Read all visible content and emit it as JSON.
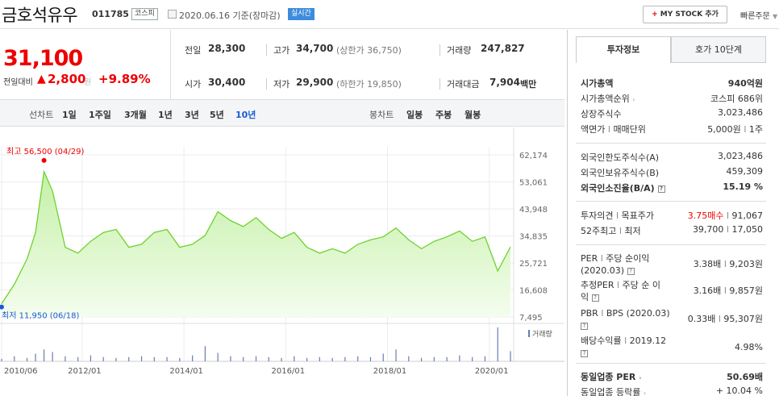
{
  "header": {
    "title": "금호석유우",
    "code": "011785",
    "market_tag": "코스피",
    "date_text": "2020.06.16 기준(장마감)",
    "realtime_tag": "실시간",
    "mystock_button": "MY STOCK 추가",
    "mystock_plus": "+",
    "quick_order": "빠른주문"
  },
  "price": {
    "current": "31,100",
    "change_label": "전일대비",
    "change_arrow": "▲",
    "change_value": "2,800",
    "change_unit": "원",
    "change_pct": "+9.89%"
  },
  "stats": {
    "prev_close_label": "전일",
    "prev_close": "28,300",
    "high_label": "고가",
    "high": "34,700",
    "upper_limit": "(상한가 36,750)",
    "volume_label": "거래량",
    "volume": "247,827",
    "open_label": "시가",
    "open": "30,400",
    "low_label": "저가",
    "low": "29,900",
    "lower_limit": "(하한가 19,850)",
    "amount_label": "거래대금",
    "amount": "7,904",
    "amount_unit": "백만"
  },
  "chart_tabs": {
    "line_label": "선차트",
    "line_periods": [
      "1일",
      "1주일",
      "3개월",
      "1년",
      "3년",
      "5년",
      "10년"
    ],
    "selected_period": "10년",
    "candle_label": "봉차트",
    "candle_periods": [
      "일봉",
      "주봉",
      "월봉"
    ]
  },
  "chart_data": {
    "type": "area",
    "ylabel": "",
    "yticks": [
      "62,174",
      "53,061",
      "43,948",
      "34,835",
      "25,721",
      "16,608",
      "7,495"
    ],
    "ylim": [
      7495,
      62174
    ],
    "xticks": [
      "2010/06",
      "2012/01",
      "2014/01",
      "2016/01",
      "2018/01",
      "2020/01"
    ],
    "x": [
      "2010/06",
      "2010/09",
      "2010/12",
      "2011/02",
      "2011/04",
      "2011/06",
      "2011/09",
      "2011/12",
      "2012/03",
      "2012/06",
      "2012/09",
      "2012/12",
      "2013/03",
      "2013/06",
      "2013/09",
      "2013/12",
      "2014/03",
      "2014/06",
      "2014/09",
      "2014/12",
      "2015/03",
      "2015/06",
      "2015/09",
      "2015/12",
      "2016/03",
      "2016/06",
      "2016/09",
      "2016/12",
      "2017/03",
      "2017/06",
      "2017/09",
      "2017/12",
      "2018/03",
      "2018/06",
      "2018/09",
      "2018/12",
      "2019/03",
      "2019/06",
      "2019/09",
      "2019/12",
      "2020/03",
      "2020/06"
    ],
    "y": [
      11950,
      18500,
      27000,
      36000,
      56500,
      50000,
      31000,
      29000,
      33000,
      36000,
      37000,
      31000,
      32000,
      36000,
      37000,
      31000,
      32000,
      35000,
      43000,
      40000,
      38000,
      41000,
      37000,
      34000,
      36000,
      31000,
      29000,
      30500,
      29000,
      32000,
      33500,
      34500,
      37500,
      33500,
      30500,
      33000,
      34500,
      36500,
      33000,
      34500,
      23000,
      31100
    ],
    "max_label": "최고 56,500 (04/29)",
    "min_label": "최저 11,950 (06/18)",
    "volume_label": "거래량",
    "volume": [
      3,
      6,
      4,
      9,
      14,
      11,
      6,
      5,
      7,
      5,
      4,
      5,
      6,
      5,
      5,
      4,
      7,
      18,
      10,
      6,
      5,
      6,
      5,
      4,
      6,
      4,
      5,
      4,
      5,
      6,
      5,
      9,
      14,
      6,
      4,
      5,
      5,
      7,
      5,
      6,
      40,
      12
    ]
  },
  "right_panel": {
    "tab_invest": "투자정보",
    "tab_hoga": "호가 10단계",
    "market_cap_label": "시가총액",
    "market_cap_value": "940억원",
    "market_cap_rank_label": "시가총액순위",
    "market_cap_rank_value": "코스피 686위",
    "shares_label": "상장주식수",
    "shares_value": "3,023,486",
    "face_value_label": "액면가",
    "face_sep": "l",
    "trade_unit_label": "매매단위",
    "face_value_value": "5,000원",
    "trade_unit_value": "1주",
    "foreign_limit_label": "외국인한도주식수(A)",
    "foreign_limit_value": "3,023,486",
    "foreign_hold_label": "외국인보유주식수(B)",
    "foreign_hold_value": "459,309",
    "foreign_ratio_label": "외국인소진율(B/A)",
    "foreign_ratio_value": "15.19 %",
    "opinion_label": "투자의견",
    "target_label": "목표주가",
    "opinion_value": "3.75매수",
    "target_value": "91,067",
    "week52_high_label": "52주최고",
    "week52_low_label": "최저",
    "week52_high_value": "39,700",
    "week52_low_value": "17,050",
    "per_label": "PER",
    "eps_label": "주당 순이익",
    "per_period": "(2020.03)",
    "per_value": "3.38배",
    "eps_value": "9,203원",
    "est_per_label": "추정PER",
    "est_eps_label": "주당 순 이",
    "est_eps_label2": "익",
    "est_per_value": "3.16배",
    "est_eps_value": "9,857원",
    "pbr_label": "PBR",
    "bps_label": "BPS",
    "pbr_period": "(2020.03)",
    "pbr_value": "0.33배",
    "bps_value": "95,307원",
    "div_label": "배당수익률",
    "div_period": "2019.12",
    "div_value": "4.98%",
    "industry_per_label": "동일업종 PER",
    "industry_per_value": "50.69배",
    "industry_rate_label": "동일업종 등락률",
    "industry_rate_value": "+ 10.04 %"
  },
  "colors": {
    "up": "#ee0000",
    "down": "#1a5bd6",
    "area_line": "#6dd22e",
    "area_fill": "#d9f6c6",
    "volume_bar": "#6b7bb5"
  }
}
